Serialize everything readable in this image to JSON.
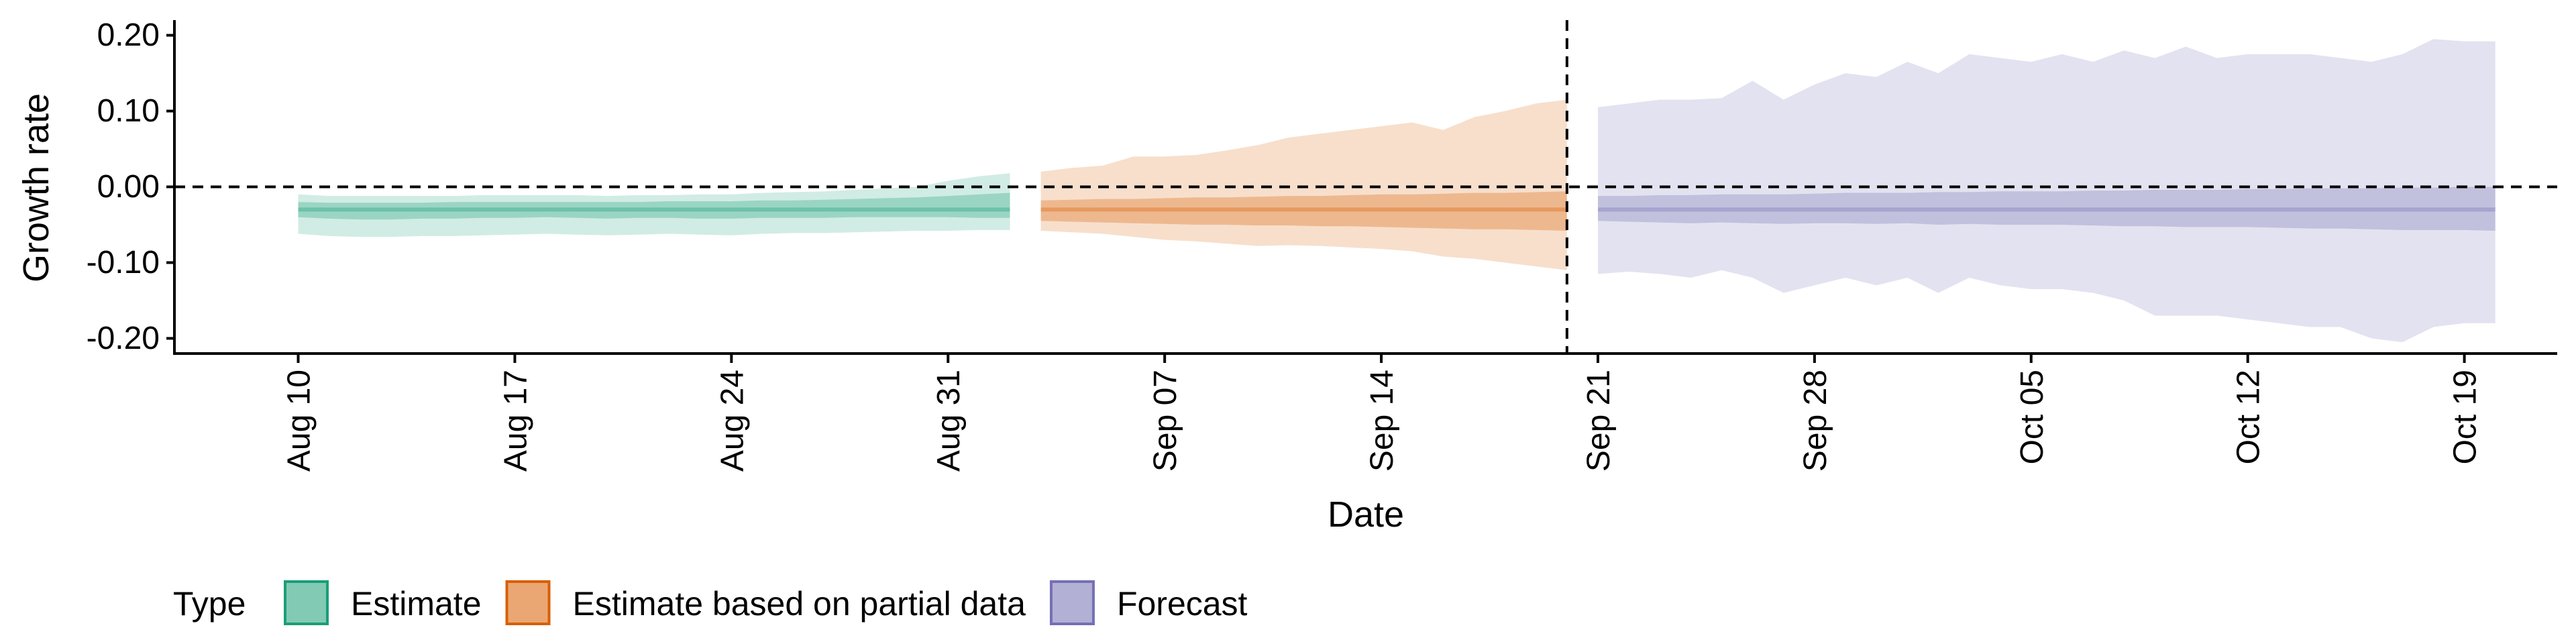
{
  "chart_data": {
    "type": "area",
    "xlabel": "Date",
    "ylabel": "Growth rate",
    "ylim": [
      -0.22,
      0.22
    ],
    "xlim": [
      "2020-08-06",
      "2020-10-22"
    ],
    "y_ticks": [
      {
        "value": 0.2,
        "label": "0.20"
      },
      {
        "value": 0.1,
        "label": "0.10"
      },
      {
        "value": 0.0,
        "label": "0.00"
      },
      {
        "value": -0.1,
        "label": "-0.10"
      },
      {
        "value": -0.2,
        "label": "-0.20"
      }
    ],
    "x_ticks": [
      {
        "date": "2020-08-10",
        "label": "Aug 10"
      },
      {
        "date": "2020-08-17",
        "label": "Aug 17"
      },
      {
        "date": "2020-08-24",
        "label": "Aug 24"
      },
      {
        "date": "2020-08-31",
        "label": "Aug 31"
      },
      {
        "date": "2020-09-07",
        "label": "Sep 07"
      },
      {
        "date": "2020-09-14",
        "label": "Sep 14"
      },
      {
        "date": "2020-09-21",
        "label": "Sep 21"
      },
      {
        "date": "2020-09-28",
        "label": "Sep 28"
      },
      {
        "date": "2020-10-05",
        "label": "Oct 05"
      },
      {
        "date": "2020-10-12",
        "label": "Oct 12"
      },
      {
        "date": "2020-10-19",
        "label": "Oct 19"
      }
    ],
    "hline": 0.0,
    "vline": "2020-09-20",
    "grid": false,
    "legend": {
      "title": "Type",
      "position": "bottom"
    },
    "series": [
      {
        "name": "Estimate",
        "color": "#1b9e77",
        "start": "2020-08-10",
        "median": [
          -0.03,
          -0.03,
          -0.03,
          -0.03,
          -0.03,
          -0.03,
          -0.03,
          -0.03,
          -0.03,
          -0.03,
          -0.03,
          -0.03,
          -0.03,
          -0.03,
          -0.03,
          -0.03,
          -0.03,
          -0.03,
          -0.03,
          -0.03,
          -0.03,
          -0.03,
          -0.03,
          -0.03
        ],
        "lower_90": [
          -0.062,
          -0.065,
          -0.066,
          -0.066,
          -0.065,
          -0.065,
          -0.064,
          -0.063,
          -0.062,
          -0.063,
          -0.064,
          -0.063,
          -0.062,
          -0.063,
          -0.064,
          -0.062,
          -0.061,
          -0.061,
          -0.06,
          -0.059,
          -0.058,
          -0.058,
          -0.057,
          -0.057
        ],
        "upper_90": [
          -0.01,
          -0.012,
          -0.012,
          -0.012,
          -0.012,
          -0.012,
          -0.011,
          -0.011,
          -0.011,
          -0.011,
          -0.012,
          -0.011,
          -0.011,
          -0.01,
          -0.01,
          -0.008,
          -0.007,
          -0.006,
          -0.004,
          -0.002,
          0.0,
          0.008,
          0.014,
          0.018
        ],
        "lower_50": [
          -0.04,
          -0.042,
          -0.043,
          -0.043,
          -0.042,
          -0.042,
          -0.041,
          -0.041,
          -0.04,
          -0.041,
          -0.042,
          -0.041,
          -0.041,
          -0.042,
          -0.042,
          -0.041,
          -0.041,
          -0.041,
          -0.04,
          -0.04,
          -0.04,
          -0.04,
          -0.041,
          -0.041
        ],
        "upper_50": [
          -0.02,
          -0.021,
          -0.021,
          -0.021,
          -0.021,
          -0.02,
          -0.02,
          -0.02,
          -0.02,
          -0.02,
          -0.02,
          -0.02,
          -0.019,
          -0.019,
          -0.019,
          -0.018,
          -0.018,
          -0.017,
          -0.016,
          -0.015,
          -0.014,
          -0.012,
          -0.01,
          -0.008
        ]
      },
      {
        "name": "Estimate based on partial data",
        "color": "#d95f02",
        "start": "2020-09-03",
        "median": [
          -0.03,
          -0.03,
          -0.03,
          -0.03,
          -0.03,
          -0.03,
          -0.03,
          -0.03,
          -0.03,
          -0.03,
          -0.03,
          -0.03,
          -0.03,
          -0.03,
          -0.03,
          -0.03,
          -0.03,
          -0.03
        ],
        "lower_90": [
          -0.058,
          -0.06,
          -0.062,
          -0.066,
          -0.07,
          -0.072,
          -0.075,
          -0.078,
          -0.077,
          -0.078,
          -0.08,
          -0.082,
          -0.085,
          -0.092,
          -0.095,
          -0.1,
          -0.105,
          -0.11
        ],
        "upper_90": [
          0.02,
          0.025,
          0.028,
          0.04,
          0.04,
          0.042,
          0.048,
          0.055,
          0.065,
          0.07,
          0.075,
          0.08,
          0.085,
          0.075,
          0.092,
          0.1,
          0.11,
          0.115
        ],
        "lower_50": [
          -0.045,
          -0.046,
          -0.047,
          -0.048,
          -0.049,
          -0.05,
          -0.05,
          -0.051,
          -0.051,
          -0.052,
          -0.052,
          -0.053,
          -0.054,
          -0.055,
          -0.056,
          -0.056,
          -0.057,
          -0.058
        ],
        "upper_50": [
          -0.018,
          -0.017,
          -0.016,
          -0.016,
          -0.015,
          -0.014,
          -0.014,
          -0.013,
          -0.012,
          -0.012,
          -0.011,
          -0.01,
          -0.01,
          -0.009,
          -0.008,
          -0.008,
          -0.007,
          -0.006
        ]
      },
      {
        "name": "Forecast",
        "color": "#7570b3",
        "start": "2020-09-21",
        "median": [
          -0.03,
          -0.03,
          -0.03,
          -0.03,
          -0.03,
          -0.03,
          -0.03,
          -0.03,
          -0.03,
          -0.03,
          -0.03,
          -0.03,
          -0.03,
          -0.03,
          -0.03,
          -0.03,
          -0.03,
          -0.03,
          -0.03,
          -0.03,
          -0.03,
          -0.03,
          -0.03,
          -0.03,
          -0.03,
          -0.03,
          -0.03,
          -0.03,
          -0.03,
          -0.03
        ],
        "lower_90": [
          -0.115,
          -0.112,
          -0.115,
          -0.12,
          -0.11,
          -0.12,
          -0.14,
          -0.13,
          -0.12,
          -0.13,
          -0.12,
          -0.14,
          -0.12,
          -0.13,
          -0.135,
          -0.135,
          -0.14,
          -0.15,
          -0.17,
          -0.17,
          -0.17,
          -0.175,
          -0.18,
          -0.185,
          -0.185,
          -0.2,
          -0.205,
          -0.185,
          -0.18,
          -0.18
        ],
        "upper_90": [
          0.105,
          0.11,
          0.115,
          0.115,
          0.117,
          0.14,
          0.115,
          0.135,
          0.15,
          0.145,
          0.165,
          0.15,
          0.175,
          0.17,
          0.165,
          0.175,
          0.165,
          0.18,
          0.17,
          0.185,
          0.17,
          0.175,
          0.175,
          0.175,
          0.17,
          0.165,
          0.175,
          0.195,
          0.192,
          0.192
        ],
        "lower_50": [
          -0.045,
          -0.046,
          -0.047,
          -0.048,
          -0.047,
          -0.048,
          -0.049,
          -0.048,
          -0.048,
          -0.049,
          -0.048,
          -0.05,
          -0.049,
          -0.05,
          -0.05,
          -0.05,
          -0.051,
          -0.052,
          -0.052,
          -0.053,
          -0.053,
          -0.053,
          -0.054,
          -0.055,
          -0.055,
          -0.056,
          -0.057,
          -0.057,
          -0.057,
          -0.058
        ],
        "upper_50": [
          -0.012,
          -0.012,
          -0.011,
          -0.011,
          -0.01,
          -0.01,
          -0.01,
          -0.009,
          -0.008,
          -0.008,
          -0.008,
          -0.007,
          -0.007,
          -0.006,
          -0.006,
          -0.006,
          -0.005,
          -0.005,
          -0.004,
          -0.004,
          -0.004,
          -0.003,
          -0.003,
          -0.002,
          -0.002,
          -0.002,
          -0.001,
          -0.001,
          0.0,
          0.0
        ]
      }
    ]
  }
}
